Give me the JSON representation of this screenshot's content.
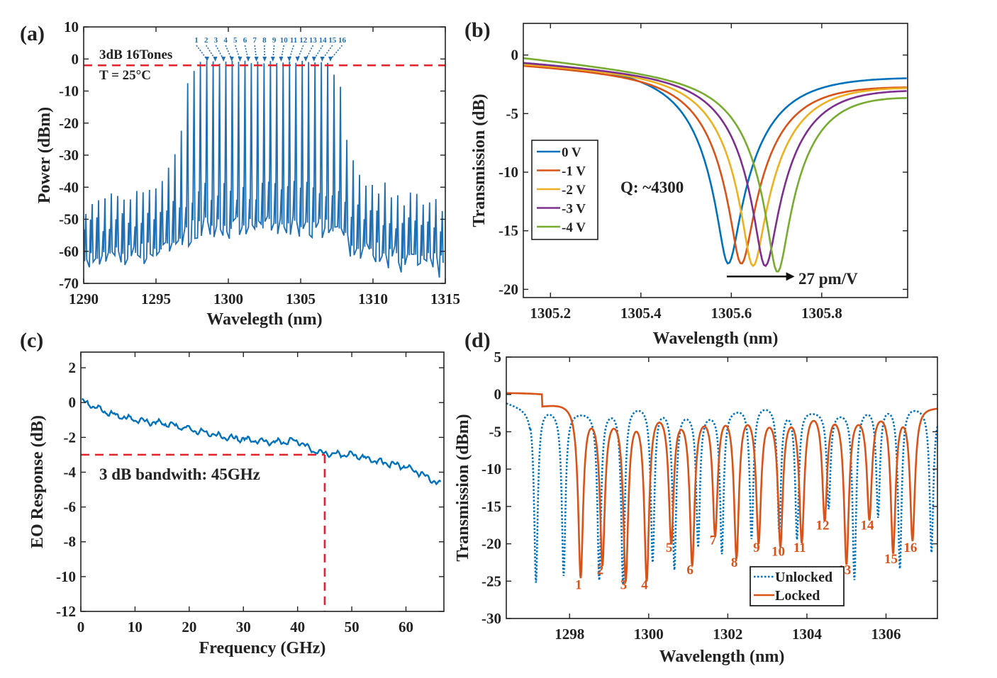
{
  "colors": {
    "a_line": "#1f6fb5",
    "ref_line": "#e8222a",
    "blue": "#0072BD",
    "orange": "#D95319",
    "yellow": "#EDB120",
    "purple": "#7E2F8E",
    "green": "#77AC30"
  },
  "chart_data": [
    {
      "panel": "(a)",
      "type": "line",
      "xlabel": "Wavelegth (nm)",
      "ylabel": "Power (dBm)",
      "xlim": [
        1290,
        1315
      ],
      "ylim": [
        -70,
        10
      ],
      "xticks": [
        1290,
        1295,
        1300,
        1305,
        1310,
        1315
      ],
      "yticks": [
        10,
        0,
        -10,
        -20,
        -30,
        -40,
        -50,
        -60,
        -70
      ],
      "comb_spacing_nm": 0.44,
      "peak_envelope": [
        [
          1290,
          -46
        ],
        [
          1294,
          -42
        ],
        [
          1295.5,
          -37
        ],
        [
          1296.5,
          -28
        ],
        [
          1297.3,
          -6
        ],
        [
          1297.9,
          -1
        ],
        [
          1307,
          -1
        ],
        [
          1307.6,
          -6
        ],
        [
          1308.3,
          -26
        ],
        [
          1309.5,
          -38
        ],
        [
          1312,
          -43
        ],
        [
          1315,
          -47
        ]
      ],
      "floor_envelope": [
        [
          1290,
          -64
        ],
        [
          1296,
          -60
        ],
        [
          1298,
          -53
        ],
        [
          1307,
          -53
        ],
        [
          1309,
          -60
        ],
        [
          1315,
          -65
        ]
      ],
      "reference_line_dBm": -2,
      "annotations": {
        "text1": "3dB  16Tones",
        "text2": "T = 25°C",
        "tone_labels": [
          "1",
          "2",
          "3",
          "4",
          "5",
          "6",
          "7",
          "8",
          "9",
          "10",
          "11",
          "12",
          "13",
          "14",
          "15",
          "16"
        ]
      }
    },
    {
      "panel": "(b)",
      "type": "line",
      "xlabel": "Wavelength (nm)",
      "ylabel": "Transmission (dB)",
      "xlim": [
        1305.14,
        1305.99
      ],
      "ylim": [
        -20.7,
        2.7
      ],
      "xticks": [
        1305.2,
        1305.4,
        1305.6,
        1305.8
      ],
      "yticks": [
        0,
        -5,
        -10,
        -15,
        -20
      ],
      "series": [
        {
          "name": "0 V",
          "color_key": "blue",
          "center_nm": 1305.593,
          "min_dB": -17.8,
          "fwhm_nm": 0.3,
          "base_left": -0.3,
          "base_right": -1.5
        },
        {
          "name": "-1 V",
          "color_key": "orange",
          "center_nm": 1305.622,
          "min_dB": -17.8,
          "fwhm_nm": 0.3,
          "base_left": -0.6,
          "base_right": -2.3
        },
        {
          "name": "-2 V",
          "color_key": "yellow",
          "center_nm": 1305.648,
          "min_dB": -18.0,
          "fwhm_nm": 0.3,
          "base_left": -0.5,
          "base_right": -2.3
        },
        {
          "name": "-3 V",
          "color_key": "purple",
          "center_nm": 1305.675,
          "min_dB": -18.0,
          "fwhm_nm": 0.3,
          "base_left": -0.4,
          "base_right": -2.5
        },
        {
          "name": "-4 V",
          "color_key": "green",
          "center_nm": 1305.702,
          "min_dB": -18.5,
          "fwhm_nm": 0.3,
          "base_left": 0.0,
          "base_right": -3.1
        }
      ],
      "annotations": {
        "q_text": "Q: ~4300",
        "shift_text": "27 pm/V",
        "arrow_from_nm": 1305.59,
        "arrow_to_nm": 1305.74,
        "arrow_dB": -18.9
      }
    },
    {
      "panel": "(c)",
      "type": "line",
      "xlabel": "Frequency (GHz)",
      "ylabel": "EO Response (dB)",
      "xlim": [
        0,
        67
      ],
      "ylim": [
        -12,
        2.9
      ],
      "xticks": [
        0,
        10,
        20,
        30,
        40,
        50,
        60
      ],
      "yticks": [
        2,
        0,
        -2,
        -4,
        -6,
        -8,
        -10,
        -12
      ],
      "trend": [
        [
          0,
          0.1
        ],
        [
          5,
          -0.6
        ],
        [
          10,
          -1.0
        ],
        [
          15,
          -1.2
        ],
        [
          20,
          -1.5
        ],
        [
          25,
          -1.9
        ],
        [
          30,
          -2.1
        ],
        [
          35,
          -2.3
        ],
        [
          40,
          -2.2
        ],
        [
          43,
          -2.8
        ],
        [
          45,
          -2.9
        ],
        [
          50,
          -3.0
        ],
        [
          55,
          -3.4
        ],
        [
          60,
          -3.7
        ],
        [
          63,
          -4.1
        ],
        [
          66,
          -4.7
        ]
      ],
      "bandwidth_GHz": 45,
      "bandwidth_level_dB": -3,
      "annotation": "3 dB bandwith: 45GHz"
    },
    {
      "panel": "(d)",
      "type": "line",
      "xlabel": "Wavelength (nm)",
      "ylabel": "Transmission (dBm)",
      "xlim": [
        1296.4,
        1307.3
      ],
      "ylim": [
        -30,
        5
      ],
      "xticks": [
        1298,
        1300,
        1302,
        1304,
        1306
      ],
      "yticks": [
        5,
        0,
        -5,
        -10,
        -15,
        -20,
        -25,
        -30
      ],
      "series": [
        {
          "name": "Unlocked",
          "color_key": "blue",
          "style": "dotted",
          "dips_nm": [
            1297.15,
            1297.85,
            1298.75,
            1299.35,
            1300.1,
            1300.65,
            1301.25,
            1301.85,
            1302.6,
            1303.3,
            1303.75,
            1304.55,
            1305.2,
            1305.8,
            1306.35,
            1307.15
          ],
          "dips_dB": [
            -25,
            -24,
            -24.5,
            -25,
            -22,
            -23,
            -20,
            -21,
            -19,
            -18,
            -19,
            -15,
            -24.5,
            -16,
            -23,
            -21
          ]
        },
        {
          "name": "Locked",
          "color_key": "orange",
          "style": "solid",
          "dips_nm": [
            1298.28,
            1298.83,
            1299.42,
            1299.95,
            1300.57,
            1301.1,
            1301.68,
            1302.22,
            1302.78,
            1303.33,
            1303.87,
            1304.45,
            1305.0,
            1305.58,
            1306.18,
            1306.67
          ],
          "dips_dB": [
            -24,
            -22,
            -24,
            -24,
            -19,
            -22,
            -18,
            -21,
            -19,
            -19.5,
            -19,
            -16,
            -22,
            -16,
            -20.5,
            -19
          ],
          "labels": [
            "1",
            "2",
            "3",
            "4",
            "5",
            "6",
            "7",
            "8",
            "9",
            "10",
            "11",
            "12",
            "13",
            "14",
            "15",
            "16"
          ]
        }
      ]
    }
  ]
}
